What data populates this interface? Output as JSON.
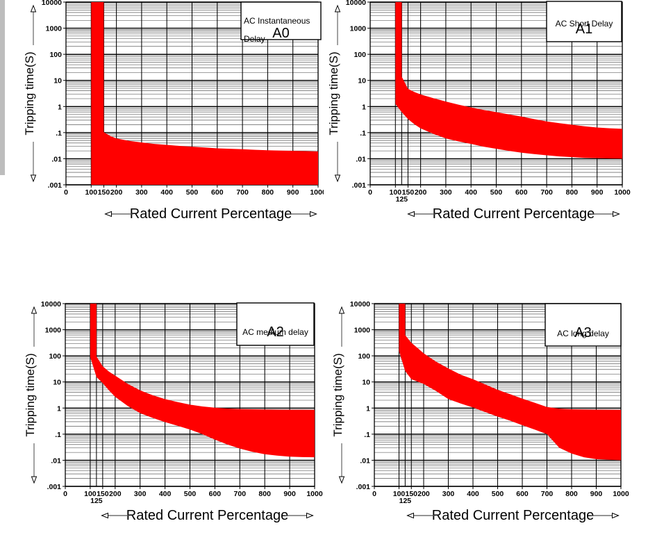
{
  "page": {
    "background": "#ffffff",
    "left_edge_strip": {
      "color": "#bdbdbd"
    }
  },
  "shared": {
    "y_axis_label": "Tripping time(S)",
    "x_axis_label": "Rated Current Percentage",
    "band_color": "#ff0000",
    "grid_major_color": "#000000",
    "grid_minor_color": "#3c3c3c",
    "text_color": "#000000"
  },
  "chart_data": [
    {
      "id": "a0",
      "type": "area",
      "title_lines": [
        "AC Instantaneous",
        "Delay"
      ],
      "panel_label": "A0",
      "xlabel": "Rated Current Percentage",
      "ylabel": "Tripping time(S)",
      "x_scale": "linear",
      "y_scale": "log",
      "xlim": [
        0,
        1000
      ],
      "ylim": [
        0.001,
        10000
      ],
      "x_ticks": [
        0,
        100,
        150,
        200,
        300,
        400,
        500,
        600,
        700,
        800,
        900,
        1000
      ],
      "extra_x_tick": null,
      "y_ticks": [
        10000,
        1000,
        100,
        10,
        1,
        0.1,
        0.01,
        0.001
      ],
      "y_tick_labels": [
        "10000",
        "1000",
        "100",
        "10",
        "1",
        ".1",
        ".01",
        ".001"
      ],
      "band_color": "#ff0000",
      "band": {
        "upper": [
          [
            100,
            10000
          ],
          [
            150,
            10000
          ],
          [
            150,
            0.105
          ],
          [
            175,
            0.075
          ],
          [
            200,
            0.06
          ],
          [
            250,
            0.048
          ],
          [
            300,
            0.042
          ],
          [
            350,
            0.037
          ],
          [
            400,
            0.034
          ],
          [
            450,
            0.031
          ],
          [
            500,
            0.029
          ],
          [
            550,
            0.027
          ],
          [
            600,
            0.025
          ],
          [
            650,
            0.024
          ],
          [
            700,
            0.023
          ],
          [
            750,
            0.022
          ],
          [
            800,
            0.021
          ],
          [
            850,
            0.0205
          ],
          [
            900,
            0.02
          ],
          [
            950,
            0.0195
          ],
          [
            1000,
            0.019
          ]
        ],
        "lower": [
          [
            100,
            0.001
          ],
          [
            1000,
            0.001
          ]
        ]
      }
    },
    {
      "id": "a1",
      "type": "area",
      "title_lines": [
        "AC Short Delay"
      ],
      "panel_label": "A1",
      "xlabel": "Rated Current Percentage",
      "ylabel": "Tripping time(S)",
      "x_scale": "linear",
      "y_scale": "log",
      "xlim": [
        0,
        1000
      ],
      "ylim": [
        0.001,
        10000
      ],
      "x_ticks": [
        0,
        100,
        150,
        200,
        300,
        400,
        500,
        600,
        700,
        800,
        900,
        1000
      ],
      "extra_x_tick": 125,
      "y_ticks": [
        10000,
        1000,
        100,
        10,
        1,
        0.1,
        0.01,
        0.001
      ],
      "y_tick_labels": [
        "10000",
        "1000",
        "100",
        "10",
        "1",
        ".1",
        ".01",
        ".001"
      ],
      "band_color": "#ff0000",
      "band": {
        "upper": [
          [
            100,
            10000
          ],
          [
            125,
            10000
          ],
          [
            125,
            14
          ],
          [
            150,
            4.8
          ],
          [
            175,
            3.6
          ],
          [
            200,
            2.9
          ],
          [
            250,
            2.1
          ],
          [
            300,
            1.55
          ],
          [
            350,
            1.18
          ],
          [
            400,
            0.92
          ],
          [
            450,
            0.74
          ],
          [
            500,
            0.61
          ],
          [
            550,
            0.5
          ],
          [
            600,
            0.41
          ],
          [
            650,
            0.33
          ],
          [
            700,
            0.27
          ],
          [
            750,
            0.23
          ],
          [
            800,
            0.2
          ],
          [
            850,
            0.175
          ],
          [
            900,
            0.157
          ],
          [
            950,
            0.147
          ],
          [
            1000,
            0.14
          ]
        ],
        "lower": [
          [
            100,
            1.25
          ],
          [
            125,
            0.61
          ],
          [
            150,
            0.33
          ],
          [
            175,
            0.21
          ],
          [
            200,
            0.145
          ],
          [
            250,
            0.09
          ],
          [
            300,
            0.06
          ],
          [
            350,
            0.046
          ],
          [
            400,
            0.037
          ],
          [
            450,
            0.029
          ],
          [
            500,
            0.024
          ],
          [
            550,
            0.02
          ],
          [
            600,
            0.017
          ],
          [
            650,
            0.015
          ],
          [
            700,
            0.0135
          ],
          [
            750,
            0.0123
          ],
          [
            800,
            0.0115
          ],
          [
            850,
            0.0108
          ],
          [
            900,
            0.0105
          ],
          [
            950,
            0.0102
          ],
          [
            1000,
            0.01
          ]
        ]
      }
    },
    {
      "id": "a2",
      "type": "area",
      "title_lines": [
        "AC medium delay"
      ],
      "panel_label": "A2",
      "xlabel": "Rated Current Percentage",
      "ylabel": "Tripping time(S)",
      "x_scale": "linear",
      "y_scale": "log",
      "xlim": [
        0,
        1000
      ],
      "ylim": [
        0.001,
        10000
      ],
      "x_ticks": [
        0,
        100,
        150,
        200,
        300,
        400,
        500,
        600,
        700,
        800,
        900,
        1000
      ],
      "extra_x_tick": 125,
      "y_ticks": [
        10000,
        1000,
        100,
        10,
        1,
        0.1,
        0.01,
        0.001
      ],
      "y_tick_labels": [
        "10000",
        "1000",
        "100",
        "10",
        "1",
        ".1",
        ".01",
        ".001"
      ],
      "band_color": "#ff0000",
      "band": {
        "upper": [
          [
            100,
            10000
          ],
          [
            125,
            10000
          ],
          [
            125,
            95
          ],
          [
            150,
            40
          ],
          [
            175,
            25
          ],
          [
            200,
            17.5
          ],
          [
            250,
            8.5
          ],
          [
            300,
            4.8
          ],
          [
            350,
            3.1
          ],
          [
            400,
            2.2
          ],
          [
            450,
            1.7
          ],
          [
            500,
            1.35
          ],
          [
            550,
            1.15
          ],
          [
            600,
            1.03
          ],
          [
            650,
            0.96
          ],
          [
            700,
            0.92
          ],
          [
            750,
            0.9
          ],
          [
            800,
            0.88
          ],
          [
            850,
            0.87
          ],
          [
            900,
            0.86
          ],
          [
            950,
            0.855
          ],
          [
            1000,
            0.85
          ]
        ],
        "lower": [
          [
            100,
            90
          ],
          [
            125,
            15.5
          ],
          [
            150,
            9
          ],
          [
            175,
            4.8
          ],
          [
            200,
            2.7
          ],
          [
            250,
            1.2
          ],
          [
            300,
            0.64
          ],
          [
            350,
            0.42
          ],
          [
            400,
            0.29
          ],
          [
            450,
            0.21
          ],
          [
            500,
            0.15
          ],
          [
            550,
            0.1
          ],
          [
            600,
            0.062
          ],
          [
            650,
            0.04
          ],
          [
            700,
            0.028
          ],
          [
            750,
            0.021
          ],
          [
            800,
            0.017
          ],
          [
            850,
            0.015
          ],
          [
            900,
            0.0138
          ],
          [
            950,
            0.0132
          ],
          [
            1000,
            0.013
          ]
        ]
      }
    },
    {
      "id": "a3",
      "type": "area",
      "title_lines": [
        "AC long delay"
      ],
      "panel_label": "A3",
      "xlabel": "Rated Current Percentage",
      "ylabel": "Tripping time(S)",
      "x_scale": "linear",
      "y_scale": "log",
      "xlim": [
        0,
        1000
      ],
      "ylim": [
        0.001,
        10000
      ],
      "x_ticks": [
        0,
        100,
        150,
        200,
        300,
        400,
        500,
        600,
        700,
        800,
        900,
        1000
      ],
      "extra_x_tick": 125,
      "y_ticks": [
        10000,
        1000,
        100,
        10,
        1,
        0.1,
        0.01,
        0.001
      ],
      "y_tick_labels": [
        "10000",
        "1000",
        "100",
        "10",
        "1",
        ".1",
        ".01",
        ".001"
      ],
      "band_color": "#ff0000",
      "band": {
        "upper": [
          [
            100,
            10000
          ],
          [
            125,
            10000
          ],
          [
            125,
            620
          ],
          [
            150,
            315
          ],
          [
            175,
            200
          ],
          [
            200,
            125
          ],
          [
            250,
            60
          ],
          [
            300,
            33
          ],
          [
            350,
            19
          ],
          [
            400,
            12.7
          ],
          [
            450,
            8
          ],
          [
            500,
            5
          ],
          [
            550,
            3.4
          ],
          [
            600,
            2.3
          ],
          [
            650,
            1.6
          ],
          [
            700,
            1.1
          ],
          [
            750,
            0.95
          ],
          [
            800,
            0.9
          ],
          [
            850,
            0.88
          ],
          [
            900,
            0.87
          ],
          [
            950,
            0.86
          ],
          [
            1000,
            0.85
          ]
        ],
        "lower": [
          [
            100,
            150
          ],
          [
            125,
            26
          ],
          [
            150,
            12.7
          ],
          [
            200,
            8.4
          ],
          [
            250,
            4.5
          ],
          [
            300,
            2.2
          ],
          [
            350,
            1.5
          ],
          [
            400,
            1.05
          ],
          [
            450,
            0.7
          ],
          [
            500,
            0.47
          ],
          [
            550,
            0.33
          ],
          [
            600,
            0.22
          ],
          [
            650,
            0.15
          ],
          [
            700,
            0.1
          ],
          [
            750,
            0.03
          ],
          [
            800,
            0.018
          ],
          [
            850,
            0.013
          ],
          [
            900,
            0.011
          ],
          [
            950,
            0.0105
          ],
          [
            1000,
            0.01
          ]
        ]
      }
    }
  ]
}
